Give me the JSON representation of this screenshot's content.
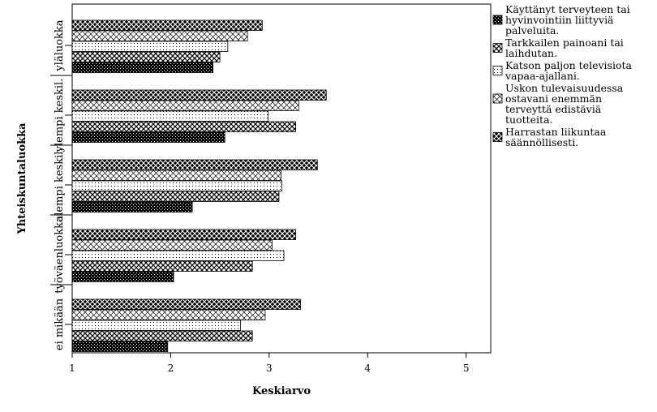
{
  "chart_data": {
    "type": "bar",
    "orientation": "horizontal",
    "xlabel": "Keskiarvo",
    "ylabel": "Yhteiskuntaluokka",
    "xlim": [
      1,
      5.25
    ],
    "xticks": [
      1,
      2,
      3,
      4,
      5
    ],
    "categories": [
      "yläluokka",
      "ylempi keskil.",
      "alempi keskil.",
      "työväenluokka",
      "ei mikään"
    ],
    "legend_position": "right",
    "series": [
      {
        "name": "Käyttänyt terveyteen tai hyvinvointiin liittyviä palveluita.",
        "legend_lines": [
          "Käyttänyt terveyteen tai",
          "hyvinvointiin liittyviä",
          "palveluita."
        ],
        "pattern": "dense",
        "values": [
          2.43,
          2.55,
          2.22,
          2.03,
          1.97
        ]
      },
      {
        "name": "Tarkkailen painoani tai laihdutan.",
        "legend_lines": [
          "Tarkkailen painoani tai",
          "laihdutan."
        ],
        "pattern": "crosshatch",
        "values": [
          2.5,
          3.27,
          3.1,
          2.83,
          2.83
        ]
      },
      {
        "name": "Katson paljon televisiota vapaa-ajallani.",
        "legend_lines": [
          "Katson paljon televisiota",
          "vapaa-ajallani."
        ],
        "pattern": "dots",
        "values": [
          2.58,
          2.99,
          3.13,
          3.15,
          2.71
        ]
      },
      {
        "name": "Uskon tulevaisuudessa ostavani enemmän terveyttä edistäviä tuotteita.",
        "legend_lines": [
          "Uskon tulevaisuudessa",
          "ostavani enemmän",
          "terveyttä edistäviä",
          "tuotteita."
        ],
        "pattern": "diag",
        "values": [
          2.78,
          3.3,
          3.12,
          3.03,
          2.96
        ]
      },
      {
        "name": "Harrastan liikuntaa säännöllisesti.",
        "legend_lines": [
          "Harrastan liikuntaa",
          "säännöllisesti."
        ],
        "pattern": "xcross",
        "values": [
          2.93,
          3.58,
          3.49,
          3.27,
          3.32
        ]
      }
    ]
  }
}
